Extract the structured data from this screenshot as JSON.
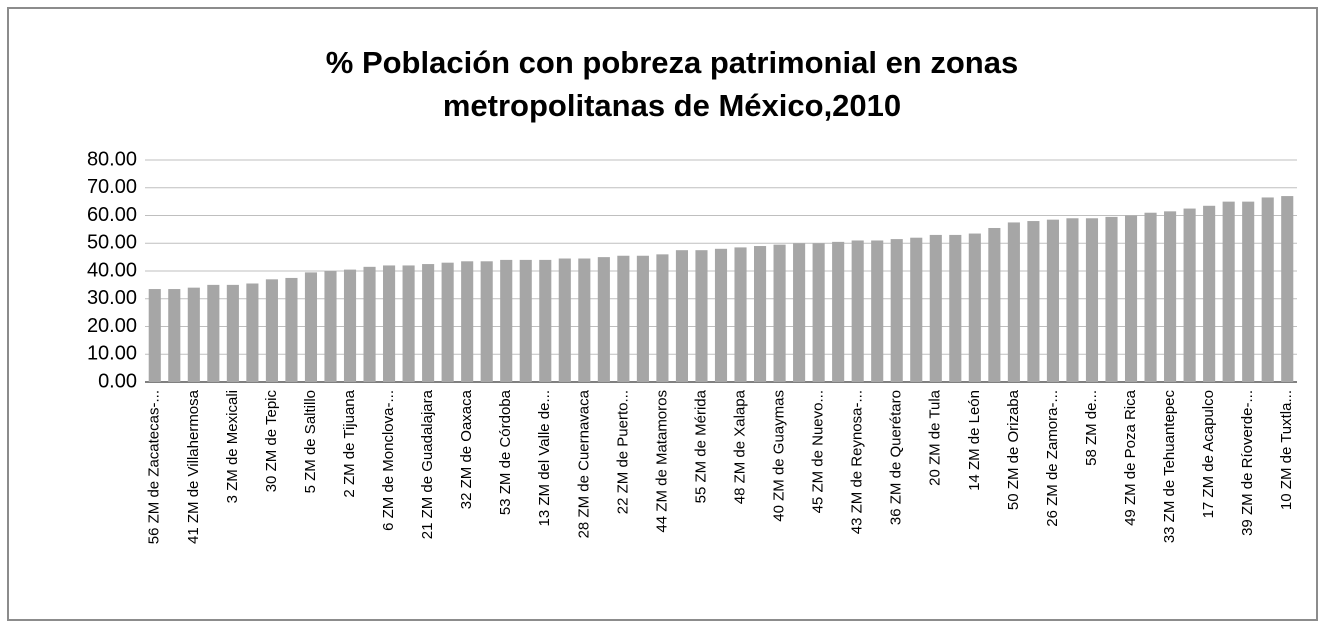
{
  "chart_data": {
    "type": "bar",
    "title": [
      "% Población con pobreza patrimonial en zonas",
      "metropolitanas de México,2010"
    ],
    "categories": [
      "56 ZM de Zacatecas-...",
      null,
      "41 ZM de Villahermosa",
      null,
      "3 ZM de Mexicali",
      null,
      "30 ZM de Tepic",
      null,
      "5 ZM de Saltillo",
      null,
      "2 ZM de Tijuana",
      null,
      "6 ZM de Monclova-...",
      null,
      "21 ZM de Guadalajara",
      null,
      "32 ZM de Oaxaca",
      null,
      "53 ZM de Córdoba",
      null,
      "13 ZM del Valle de...",
      null,
      "28 ZM de Cuernavaca",
      null,
      "22 ZM de Puerto...",
      null,
      "44 ZM de Matamoros",
      null,
      "55 ZM de Mérida",
      null,
      "48 ZM de Xalapa",
      null,
      "40 ZM de Guaymas",
      null,
      "45 ZM de Nuevo...",
      null,
      "43 ZM de Reynosa-...",
      null,
      "36 ZM de Querétaro",
      null,
      "20 ZM de Tula",
      null,
      "14 ZM de León",
      null,
      "50 ZM de Orizaba",
      null,
      "26 ZM de Zamora-...",
      null,
      "58 ZM de...",
      null,
      "49 ZM de Poza Rica",
      null,
      "33 ZM de Tehuantepec",
      null,
      "17 ZM de Acapulco",
      null,
      "39 ZM de Ríoverde-...",
      null,
      "10 ZM de Tuxtla..."
    ],
    "values": [
      33.5,
      33.5,
      34,
      35,
      35,
      35.5,
      37,
      37.5,
      39.5,
      40,
      40.5,
      41.5,
      42,
      42,
      42.5,
      43,
      43.5,
      43.5,
      44,
      44,
      44,
      44.5,
      44.5,
      45,
      45.5,
      45.5,
      46,
      47.5,
      47.5,
      48,
      48.5,
      49,
      49.5,
      50,
      50,
      50.5,
      51,
      51,
      51.5,
      52,
      53,
      53,
      53.5,
      55.5,
      57.5,
      58,
      58.5,
      59,
      59,
      59.5,
      60,
      61,
      61.5,
      62.5,
      63.5,
      65,
      65,
      66.5,
      67
    ],
    "color": "#a6a6a6",
    "ylim": [
      0,
      80
    ],
    "yticks": [
      {
        "value": 0,
        "label": "0.00"
      },
      {
        "value": 10,
        "label": "10.00"
      },
      {
        "value": 20,
        "label": "20.00"
      },
      {
        "value": 30,
        "label": "30.00"
      },
      {
        "value": 40,
        "label": "40.00"
      },
      {
        "value": 50,
        "label": "50.00"
      },
      {
        "value": 60,
        "label": "60.00"
      },
      {
        "value": 70,
        "label": "70.00"
      },
      {
        "value": 80,
        "label": "80.00"
      }
    ],
    "grid": true
  }
}
